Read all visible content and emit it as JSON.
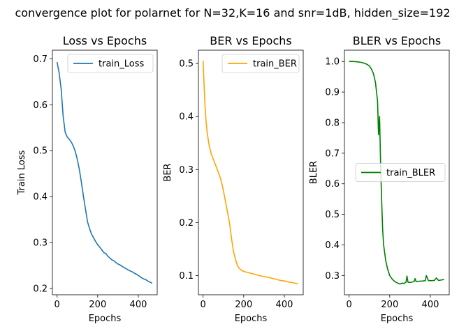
{
  "suptitle": "convergence plot for polarnet for N=32,K=16 and snr=1dB, hidden_size=192",
  "chart_data": [
    {
      "type": "line",
      "title": "Loss vs Epochs",
      "xlabel": "Epochs",
      "ylabel": "Train Loss",
      "xlim": [
        -23,
        493
      ],
      "ylim": [
        0.186,
        0.719
      ],
      "xticks": [
        0,
        200,
        400
      ],
      "yticks": [
        0.2,
        0.3,
        0.4,
        0.5,
        0.6,
        0.7
      ],
      "ytick_labels": [
        "0.2",
        "0.3",
        "0.4",
        "0.5",
        "0.6",
        "0.7"
      ],
      "legend": "upper right",
      "series": [
        {
          "name": "train_Loss",
          "color": "#1f77b4",
          "x": [
            0,
            10,
            20,
            30,
            40,
            50,
            60,
            70,
            80,
            90,
            100,
            110,
            120,
            130,
            140,
            150,
            160,
            170,
            180,
            190,
            200,
            210,
            220,
            230,
            240,
            250,
            260,
            270,
            280,
            290,
            300,
            310,
            320,
            330,
            340,
            350,
            360,
            370,
            380,
            390,
            400,
            410,
            420,
            430,
            440,
            450,
            460,
            468
          ],
          "y": [
            0.693,
            0.67,
            0.635,
            0.575,
            0.54,
            0.53,
            0.525,
            0.519,
            0.51,
            0.498,
            0.48,
            0.458,
            0.43,
            0.4,
            0.372,
            0.345,
            0.33,
            0.318,
            0.31,
            0.302,
            0.295,
            0.29,
            0.284,
            0.278,
            0.276,
            0.27,
            0.266,
            0.262,
            0.26,
            0.256,
            0.253,
            0.251,
            0.248,
            0.245,
            0.243,
            0.24,
            0.238,
            0.236,
            0.233,
            0.231,
            0.228,
            0.225,
            0.222,
            0.22,
            0.218,
            0.215,
            0.213,
            0.211
          ]
        }
      ]
    },
    {
      "type": "line",
      "title": "BER vs Epochs",
      "xlabel": "Epochs",
      "ylabel": "BER",
      "xlim": [
        -23,
        493
      ],
      "ylim": [
        0.064,
        0.525
      ],
      "xticks": [
        0,
        200,
        400
      ],
      "yticks": [
        0.1,
        0.2,
        0.3,
        0.4,
        0.5
      ],
      "ytick_labels": [
        "0.1",
        "0.2",
        "0.3",
        "0.4",
        "0.5"
      ],
      "legend": "upper right",
      "series": [
        {
          "name": "train_BER",
          "color": "#ffa500",
          "x": [
            0,
            5,
            10,
            15,
            20,
            30,
            40,
            50,
            60,
            70,
            80,
            90,
            100,
            110,
            120,
            130,
            140,
            150,
            160,
            170,
            180,
            190,
            200,
            220,
            240,
            260,
            280,
            300,
            320,
            340,
            360,
            380,
            400,
            420,
            440,
            460,
            468
          ],
          "y": [
            0.505,
            0.46,
            0.415,
            0.39,
            0.37,
            0.345,
            0.33,
            0.32,
            0.31,
            0.3,
            0.29,
            0.278,
            0.26,
            0.24,
            0.22,
            0.2,
            0.17,
            0.145,
            0.13,
            0.118,
            0.113,
            0.11,
            0.108,
            0.106,
            0.104,
            0.102,
            0.1,
            0.098,
            0.097,
            0.095,
            0.093,
            0.091,
            0.09,
            0.088,
            0.087,
            0.085,
            0.085
          ]
        }
      ]
    },
    {
      "type": "line",
      "title": "BLER vs Epochs",
      "xlabel": "Epochs",
      "ylabel": "BLER",
      "xlim": [
        -23,
        493
      ],
      "ylim": [
        0.237,
        1.037
      ],
      "xticks": [
        0,
        200,
        400
      ],
      "yticks": [
        0.3,
        0.4,
        0.5,
        0.6,
        0.7,
        0.8,
        0.9,
        1.0
      ],
      "ytick_labels": [
        "0.3",
        "0.4",
        "0.5",
        "0.6",
        "0.7",
        "0.8",
        "0.9",
        "1.0"
      ],
      "legend": "center right",
      "series": [
        {
          "name": "train_BLER",
          "color": "#008000",
          "x": [
            0,
            20,
            40,
            60,
            70,
            80,
            90,
            100,
            110,
            120,
            130,
            140,
            145,
            150,
            155,
            160,
            165,
            170,
            180,
            190,
            200,
            210,
            220,
            230,
            240,
            250,
            260,
            270,
            280,
            285,
            290,
            300,
            320,
            325,
            330,
            340,
            360,
            375,
            380,
            390,
            400,
            420,
            430,
            440,
            460,
            468
          ],
          "y": [
            1.0,
            1.0,
            0.999,
            0.997,
            0.995,
            0.993,
            0.99,
            0.985,
            0.975,
            0.96,
            0.93,
            0.87,
            0.76,
            0.82,
            0.67,
            0.55,
            0.45,
            0.4,
            0.35,
            0.32,
            0.3,
            0.29,
            0.283,
            0.278,
            0.275,
            0.272,
            0.275,
            0.274,
            0.278,
            0.298,
            0.278,
            0.277,
            0.28,
            0.29,
            0.28,
            0.281,
            0.282,
            0.283,
            0.3,
            0.284,
            0.283,
            0.284,
            0.292,
            0.284,
            0.286,
            0.287
          ]
        }
      ]
    }
  ]
}
